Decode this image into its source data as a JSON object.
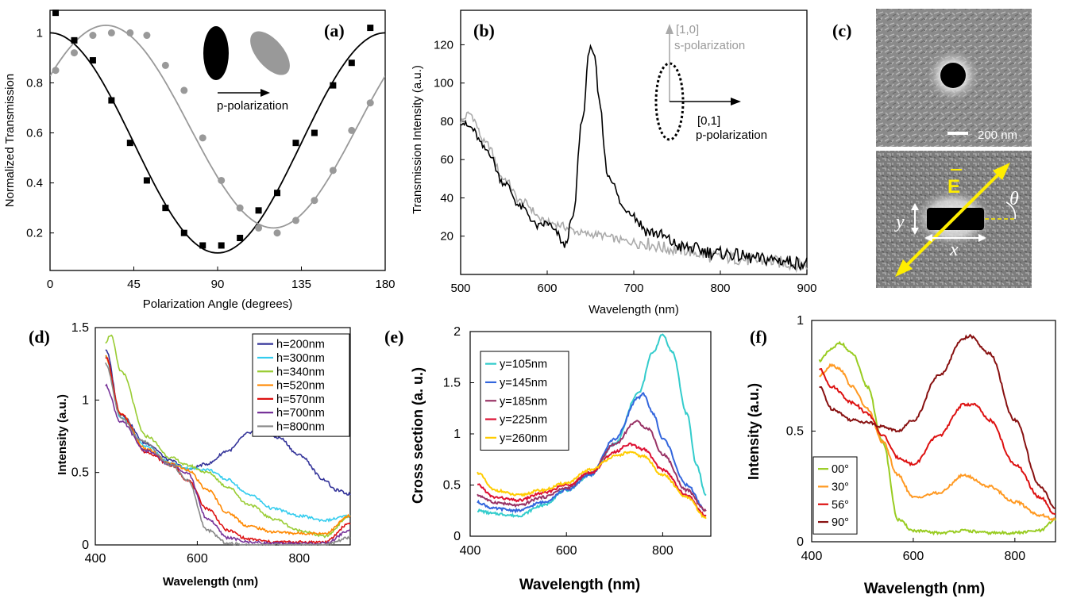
{
  "panels": {
    "a": {
      "label": "(a)",
      "annotation": "p-polarization",
      "chart_data": {
        "type": "line",
        "xlabel": "Polarization Angle (degrees)",
        "ylabel": "Normalized Transmission",
        "xlim": [
          0,
          180
        ],
        "ylim": [
          0.05,
          1.09
        ],
        "xticks": [
          "0",
          "45",
          "90",
          "135",
          "180"
        ],
        "yticks": [
          "0.2",
          "0.4",
          "0.6",
          "0.8",
          "1"
        ],
        "series": [
          {
            "name": "black fit",
            "color": "#000000",
            "kind": "line",
            "fit": {
              "mean": 0.56,
              "amp": 0.44,
              "phase_deg": 0
            }
          },
          {
            "name": "gray fit",
            "color": "#999999",
            "kind": "line",
            "fit": {
              "mean": 0.625,
              "amp": 0.405,
              "phase_deg": 30
            }
          },
          {
            "name": "black data",
            "color": "#000000",
            "kind": "square",
            "x": [
              3,
              13,
              23,
              33,
              43,
              52,
              62,
              72,
              82,
              92,
              102,
              112,
              122,
              132,
              142,
              152,
              162,
              172
            ],
            "y": [
              1.08,
              0.97,
              0.89,
              0.73,
              0.56,
              0.41,
              0.3,
              0.2,
              0.15,
              0.15,
              0.18,
              0.29,
              0.36,
              0.56,
              0.6,
              0.79,
              0.88,
              1.02
            ]
          },
          {
            "name": "gray data",
            "color": "#999999",
            "kind": "circle",
            "x": [
              3,
              13,
              23,
              33,
              43,
              52,
              62,
              72,
              82,
              92,
              102,
              112,
              122,
              132,
              142,
              152,
              162,
              172
            ],
            "y": [
              0.85,
              0.92,
              0.99,
              1.0,
              1.0,
              0.99,
              0.87,
              0.77,
              0.58,
              0.41,
              0.3,
              0.22,
              0.2,
              0.25,
              0.33,
              0.45,
              0.61,
              0.72
            ]
          }
        ]
      }
    },
    "b": {
      "label": "(b)",
      "annotation_s_dir": "[1,0]",
      "annotation_s": "s-polarization",
      "annotation_p_dir": "[0,1]",
      "annotation_p": "p-polarization",
      "chart_data": {
        "type": "line",
        "xlabel": "Wavelength (nm)",
        "ylabel": "Transmission Intensity (a.u.)",
        "xlim": [
          500,
          900
        ],
        "ylim": [
          0,
          138
        ],
        "xticks": [
          "500",
          "600",
          "700",
          "800",
          "900"
        ],
        "yticks": [
          "20",
          "40",
          "60",
          "80",
          "100",
          "120"
        ],
        "series": [
          {
            "name": "p-polarization",
            "color": "#000000",
            "x": [
              500,
              510,
              530,
              550,
              570,
              590,
              600,
              610,
              620,
              630,
              640,
              650,
              655,
              660,
              670,
              690,
              720,
              760,
              800,
              850,
              900
            ],
            "y": [
              80,
              77,
              65,
              48,
              35,
              25,
              27,
              22,
              15,
              30,
              80,
              120,
              112,
              90,
              52,
              34,
              22,
              14,
              11,
              8,
              6
            ]
          },
          {
            "name": "s-polarization",
            "color": "#aaaaaa",
            "x": [
              500,
              510,
              530,
              550,
              570,
              600,
              650,
              700,
              750,
              800,
              850,
              900
            ],
            "y": [
              80,
              84,
              68,
              50,
              38,
              27,
              21,
              17,
              13,
              9,
              7,
              5
            ]
          }
        ]
      }
    },
    "c": {
      "label": "(c)",
      "scale_bar": "200 nm",
      "sym_theta": "θ",
      "sym_y": "y",
      "sym_x": "x",
      "sym_e": "E"
    },
    "d": {
      "label": "(d)",
      "chart_data": {
        "type": "line",
        "xlabel": "Wavelength (nm)",
        "ylabel": "Intensity (a.u.)",
        "xlim": [
          400,
          900
        ],
        "ylim": [
          0,
          1.5
        ],
        "xticks": [
          "400",
          "600",
          "800"
        ],
        "yticks": [
          "0",
          "0.5",
          "1",
          "1.5"
        ],
        "series": [
          {
            "name": "h=200nm",
            "color": "#333399",
            "x": [
              420,
              450,
              500,
              550,
              580,
              620,
              660,
              700,
              720,
              760,
              800,
              850,
              870,
              900
            ],
            "y": [
              1.35,
              0.9,
              0.7,
              0.58,
              0.52,
              0.56,
              0.65,
              0.77,
              0.8,
              0.74,
              0.62,
              0.45,
              0.38,
              0.35
            ]
          },
          {
            "name": "h=300nm",
            "color": "#33ccee",
            "x": [
              420,
              450,
              500,
              550,
              580,
              620,
              660,
              700,
              750,
              800,
              850,
              900
            ],
            "y": [
              1.3,
              0.88,
              0.68,
              0.56,
              0.53,
              0.52,
              0.45,
              0.35,
              0.25,
              0.2,
              0.17,
              0.2
            ]
          },
          {
            "name": "h=340nm",
            "color": "#99cc33",
            "x": [
              420,
              430,
              450,
              500,
              550,
              580,
              620,
              660,
              700,
              750,
              800,
              850,
              900
            ],
            "y": [
              1.4,
              1.45,
              1.2,
              0.75,
              0.6,
              0.55,
              0.5,
              0.4,
              0.28,
              0.18,
              0.1,
              0.06,
              0.2
            ]
          },
          {
            "name": "h=520nm",
            "color": "#ff8800",
            "x": [
              420,
              450,
              500,
              550,
              580,
              620,
              660,
              700,
              750,
              800,
              850,
              900
            ],
            "y": [
              1.3,
              0.9,
              0.66,
              0.56,
              0.52,
              0.38,
              0.22,
              0.13,
              0.09,
              0.08,
              0.08,
              0.2
            ]
          },
          {
            "name": "h=570nm",
            "color": "#dd1111",
            "x": [
              420,
              450,
              500,
              550,
              580,
              620,
              660,
              700,
              750,
              800,
              850,
              900
            ],
            "y": [
              1.3,
              0.9,
              0.64,
              0.55,
              0.45,
              0.25,
              0.1,
              0.04,
              0.02,
              0.02,
              0.02,
              0.15
            ]
          },
          {
            "name": "h=700nm",
            "color": "#773399",
            "x": [
              420,
              450,
              500,
              550,
              580,
              620,
              660,
              700,
              750,
              800,
              850,
              900
            ],
            "y": [
              1.1,
              0.85,
              0.65,
              0.55,
              0.5,
              0.18,
              0.05,
              0.02,
              0.01,
              0.01,
              0.01,
              0.1
            ]
          },
          {
            "name": "h=800nm",
            "color": "#888888",
            "x": [
              420,
              450,
              490,
              550,
              580,
              620,
              660,
              700,
              750,
              800,
              850,
              900
            ],
            "y": [
              1.25,
              0.88,
              0.72,
              0.55,
              0.45,
              0.1,
              0.01,
              0.0,
              0.0,
              0.0,
              0.0,
              0.05
            ]
          }
        ]
      }
    },
    "e": {
      "label": "(e)",
      "chart_data": {
        "type": "line",
        "xlabel": "Wavelength (nm)",
        "ylabel": "Cross section (a. u.)",
        "xlim": [
          400,
          900
        ],
        "ylim": [
          0,
          2
        ],
        "xticks": [
          "400",
          "600",
          "800"
        ],
        "yticks": [
          "0",
          "0.5",
          "1",
          "1.5",
          "2"
        ],
        "series": [
          {
            "name": "y=105nm",
            "color": "#33cccc",
            "x": [
              415,
              450,
              500,
              550,
              600,
              650,
              700,
              750,
              780,
              800,
              820,
              850,
              870,
              890
            ],
            "y": [
              0.25,
              0.22,
              0.2,
              0.3,
              0.45,
              0.6,
              0.9,
              1.4,
              1.8,
              1.97,
              1.8,
              1.2,
              0.7,
              0.4
            ]
          },
          {
            "name": "y=145nm",
            "color": "#3366dd",
            "x": [
              415,
              450,
              500,
              550,
              600,
              650,
              700,
              750,
              760,
              780,
              800,
              850,
              890
            ],
            "y": [
              0.33,
              0.27,
              0.25,
              0.33,
              0.45,
              0.6,
              0.95,
              1.35,
              1.39,
              1.2,
              0.95,
              0.5,
              0.25
            ]
          },
          {
            "name": "y=185nm",
            "color": "#993366",
            "x": [
              415,
              450,
              500,
              550,
              600,
              650,
              700,
              745,
              770,
              800,
              850,
              890
            ],
            "y": [
              0.4,
              0.33,
              0.3,
              0.38,
              0.47,
              0.62,
              0.9,
              1.12,
              1.05,
              0.8,
              0.45,
              0.25
            ]
          },
          {
            "name": "y=225nm",
            "color": "#dd1133",
            "x": [
              415,
              450,
              500,
              550,
              600,
              650,
              700,
              730,
              760,
              800,
              850,
              890
            ],
            "y": [
              0.5,
              0.38,
              0.35,
              0.42,
              0.5,
              0.62,
              0.82,
              0.9,
              0.85,
              0.65,
              0.4,
              0.2
            ]
          },
          {
            "name": "y=260nm",
            "color": "#ffcc00",
            "x": [
              415,
              450,
              500,
              550,
              600,
              650,
              700,
              730,
              760,
              800,
              850,
              890
            ],
            "y": [
              0.62,
              0.45,
              0.4,
              0.45,
              0.52,
              0.65,
              0.78,
              0.82,
              0.78,
              0.6,
              0.38,
              0.18
            ]
          }
        ]
      }
    },
    "f": {
      "label": "(f)",
      "chart_data": {
        "type": "line",
        "xlabel": "Wavelength (nm)",
        "ylabel": "Intensity (a.u.)",
        "xlim": [
          400,
          880
        ],
        "ylim": [
          0,
          1
        ],
        "xticks": [
          "400",
          "600",
          "800"
        ],
        "yticks": [
          "0",
          "0.5",
          "1"
        ],
        "series": [
          {
            "name": "00°",
            "color": "#99cc22",
            "x": [
              415,
              440,
              455,
              480,
              510,
              540,
              570,
              600,
              650,
              700,
              750,
              800,
              850,
              880
            ],
            "y": [
              0.82,
              0.87,
              0.9,
              0.85,
              0.7,
              0.45,
              0.1,
              0.05,
              0.04,
              0.05,
              0.04,
              0.04,
              0.05,
              0.1
            ]
          },
          {
            "name": "30°",
            "color": "#ff9922",
            "x": [
              415,
              440,
              455,
              480,
              510,
              540,
              570,
              600,
              650,
              700,
              750,
              800,
              850,
              880
            ],
            "y": [
              0.75,
              0.8,
              0.78,
              0.7,
              0.6,
              0.45,
              0.3,
              0.2,
              0.22,
              0.3,
              0.25,
              0.18,
              0.12,
              0.1
            ]
          },
          {
            "name": "56°",
            "color": "#dd1111",
            "x": [
              415,
              440,
              480,
              510,
              540,
              570,
              600,
              650,
              700,
              720,
              750,
              800,
              850,
              880
            ],
            "y": [
              0.78,
              0.7,
              0.63,
              0.58,
              0.48,
              0.38,
              0.35,
              0.48,
              0.62,
              0.62,
              0.55,
              0.35,
              0.2,
              0.12
            ]
          },
          {
            "name": "90°",
            "color": "#881111",
            "x": [
              415,
              440,
              480,
              510,
              540,
              570,
              600,
              650,
              700,
              710,
              750,
              800,
              850,
              880
            ],
            "y": [
              0.7,
              0.6,
              0.55,
              0.54,
              0.52,
              0.5,
              0.55,
              0.75,
              0.92,
              0.93,
              0.85,
              0.55,
              0.25,
              0.15
            ]
          }
        ]
      }
    }
  }
}
